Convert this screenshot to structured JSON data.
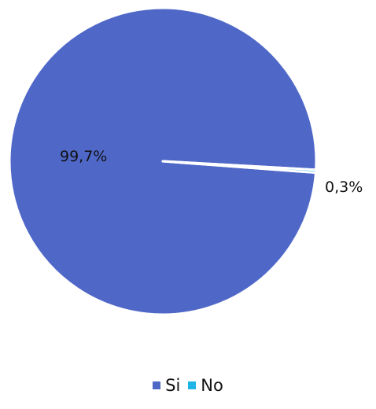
{
  "chart_data": {
    "type": "pie",
    "categories": [
      "Si",
      "No"
    ],
    "values": [
      99.7,
      0.3
    ],
    "data_labels": [
      "99,7%",
      "0,3%"
    ],
    "colors": [
      "#4f68c8",
      "#1fb4e6"
    ],
    "title": "",
    "legend_position": "bottom"
  }
}
